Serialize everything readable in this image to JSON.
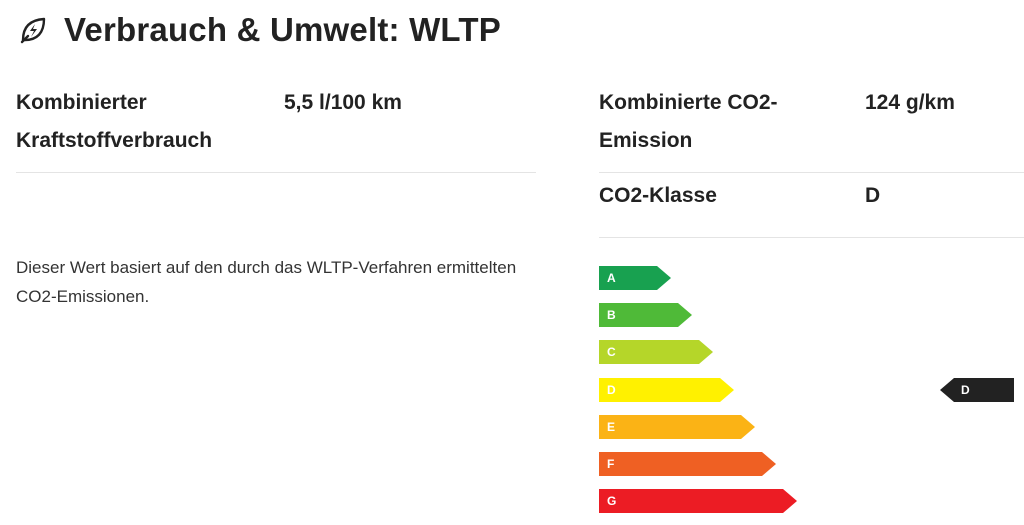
{
  "header": {
    "title": "Verbrauch & Umwelt: WLTP",
    "icon": "leaf-bolt-icon"
  },
  "consumption": {
    "label": "Kombinierter Kraftstoffverbrauch",
    "value": "5,5 l/100 km"
  },
  "emission": {
    "label": "Kombinierte CO2-Emission",
    "value": "124 g/km"
  },
  "co2_class": {
    "label": "CO2-Klasse",
    "value": "D"
  },
  "note": "Dieser Wert basiert auf den durch das WLTP-Verfahren ermittelten CO2-Emissionen.",
  "scale": {
    "classes": [
      {
        "letter": "A",
        "color": "#18a150"
      },
      {
        "letter": "B",
        "color": "#4fba38"
      },
      {
        "letter": "C",
        "color": "#b5d629"
      },
      {
        "letter": "D",
        "color": "#fff100"
      },
      {
        "letter": "E",
        "color": "#fbb315"
      },
      {
        "letter": "F",
        "color": "#ef6023"
      },
      {
        "letter": "G",
        "color": "#ec1c24"
      }
    ],
    "marker_letter": "D",
    "marker_color": "#222222"
  }
}
